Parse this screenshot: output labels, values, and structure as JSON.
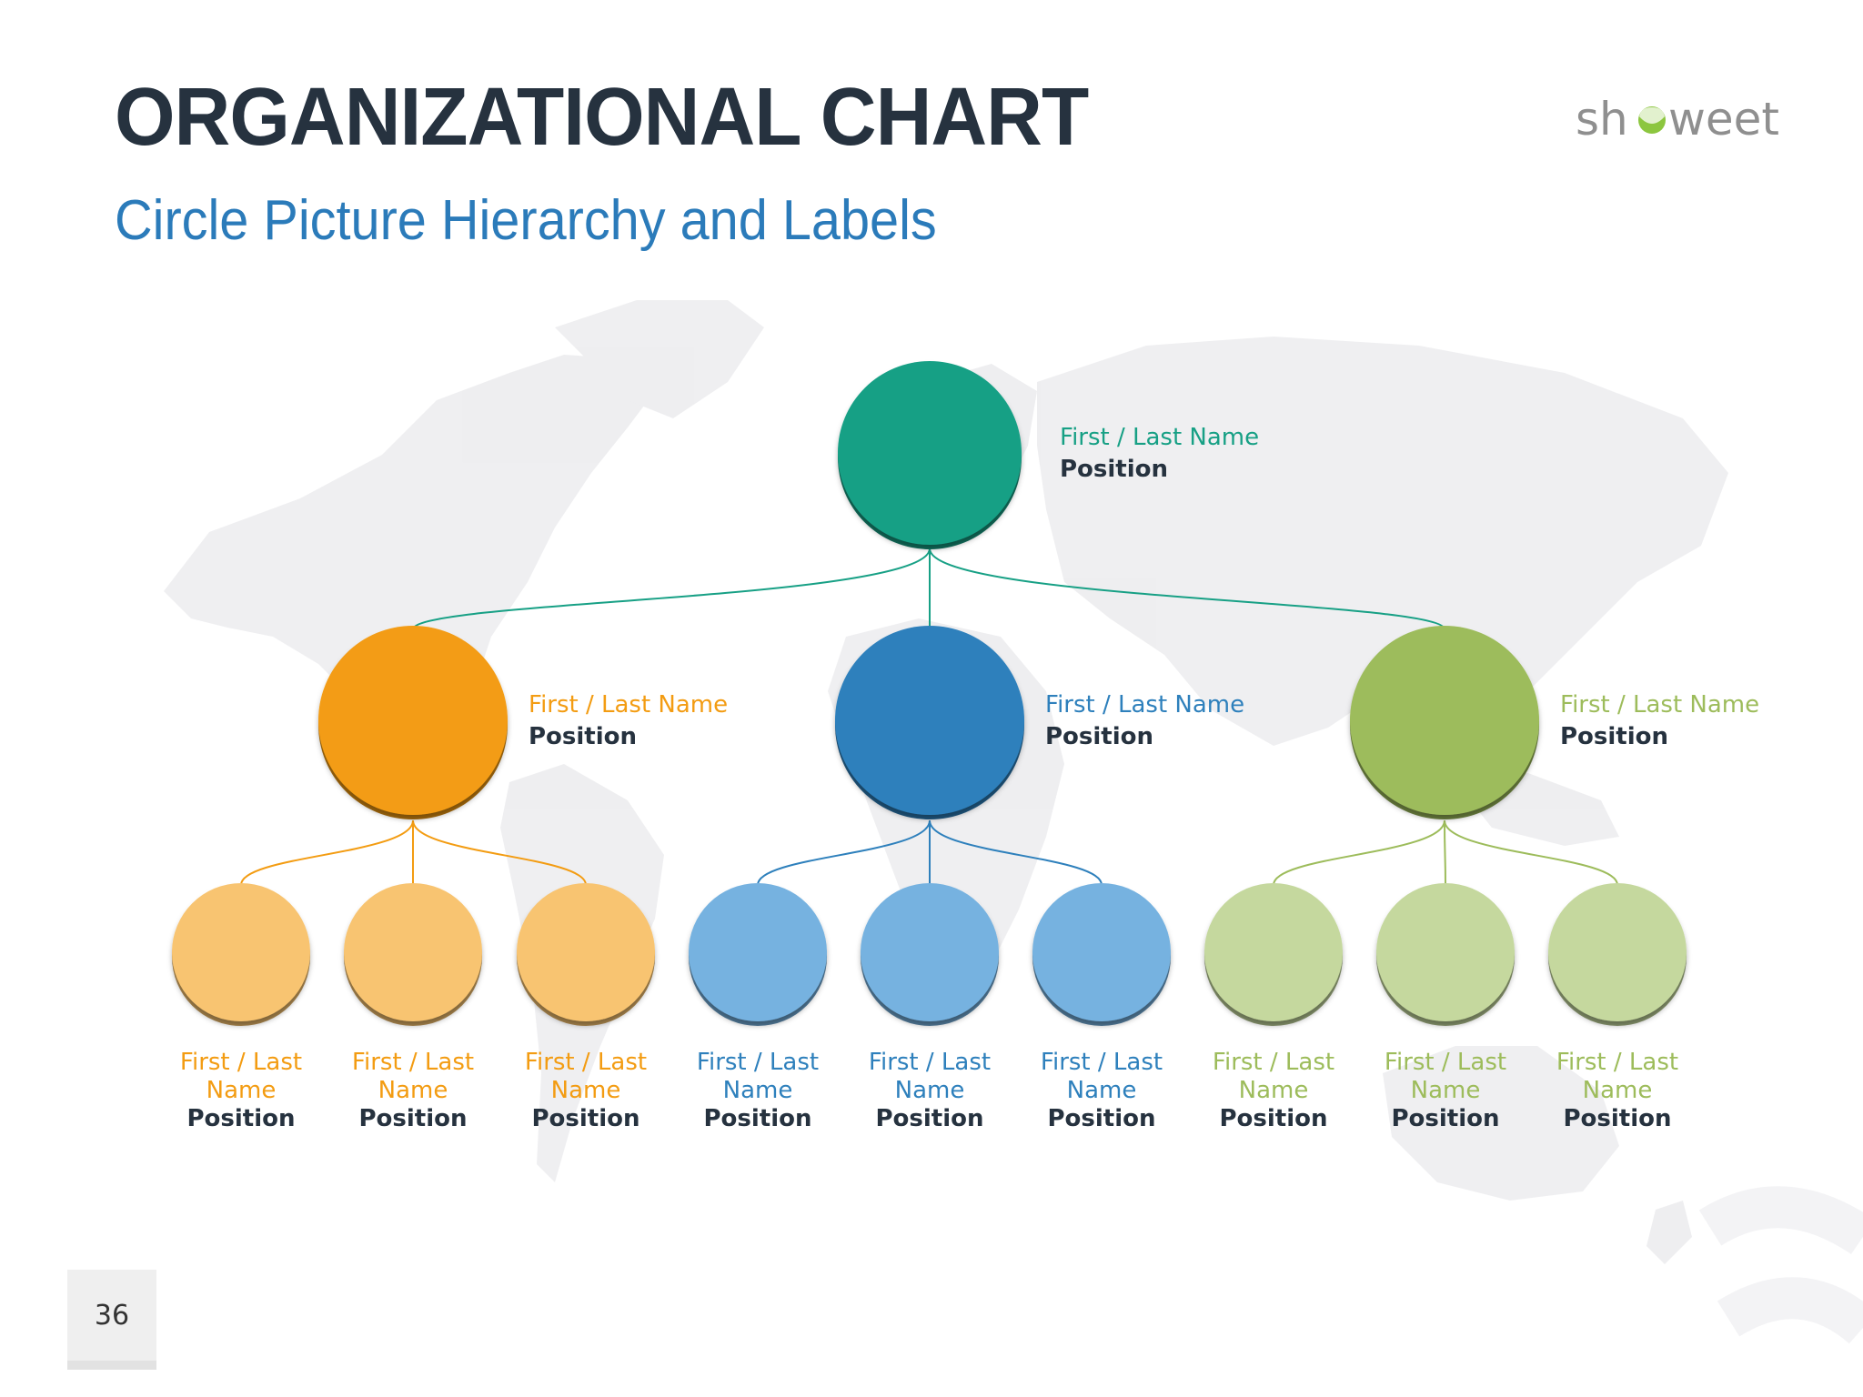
{
  "slide": {
    "title": "ORGANIZATIONAL CHART",
    "subtitle": "Circle Picture Hierarchy and Labels",
    "logo": "showeet",
    "page_number": "36"
  },
  "colors": {
    "title": "#26323f",
    "subtitle": "#2b7bba",
    "root": "#17a085",
    "orange": "#f39c12",
    "orange_light": "#f8c471",
    "blue": "#2e80bc",
    "blue_light": "#76b2e0",
    "green": "#9dbc5b",
    "green_light": "#c5d89e",
    "label_position": "#26323f",
    "map": "#ececee",
    "logo_text": "#8f8f8f",
    "logo_leaf": "#8cc63f"
  },
  "org": {
    "root": {
      "name": "First / Last Name",
      "position": "Position"
    },
    "managers": [
      {
        "name": "First / Last Name",
        "position": "Position",
        "color": "orange"
      },
      {
        "name": "First / Last Name",
        "position": "Position",
        "color": "blue"
      },
      {
        "name": "First / Last Name",
        "position": "Position",
        "color": "green"
      }
    ],
    "staff": [
      {
        "name": "First / Last Name",
        "position": "Position",
        "manager": 0
      },
      {
        "name": "First / Last Name",
        "position": "Position",
        "manager": 0
      },
      {
        "name": "First / Last Name",
        "position": "Position",
        "manager": 0
      },
      {
        "name": "First / Last Name",
        "position": "Position",
        "manager": 1
      },
      {
        "name": "First / Last Name",
        "position": "Position",
        "manager": 1
      },
      {
        "name": "First / Last Name",
        "position": "Position",
        "manager": 1
      },
      {
        "name": "First / Last Name",
        "position": "Position",
        "manager": 2
      },
      {
        "name": "First / Last Name",
        "position": "Position",
        "manager": 2
      },
      {
        "name": "First / Last Name",
        "position": "Position",
        "manager": 2
      }
    ]
  }
}
